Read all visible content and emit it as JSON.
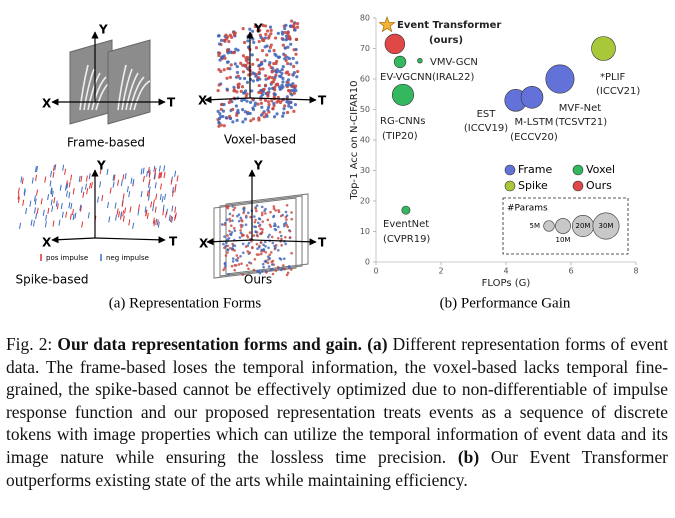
{
  "panels": {
    "forms": {
      "frame": {
        "caption": "Frame-based",
        "axes": [
          "X",
          "Y",
          "T"
        ]
      },
      "voxel": {
        "caption": "Voxel-based",
        "axes": [
          "X",
          "Y",
          "T"
        ]
      },
      "spike": {
        "caption": "Spike-based",
        "axes": [
          "X",
          "Y",
          "T"
        ],
        "legend": [
          "pos impulse",
          "neg impulse"
        ]
      },
      "ours": {
        "caption": "Ours",
        "axes": [
          "X",
          "Y",
          "T"
        ]
      }
    },
    "captions": [
      "(a) Representation Forms",
      "(b) Performance Gain"
    ]
  },
  "chart_data": {
    "type": "bubble",
    "xlabel": "FLOPs (G)",
    "ylabel": "Top-1 Acc on N-CIFAR10",
    "xlim": [
      0,
      8
    ],
    "xticks": [
      0,
      2,
      4,
      6,
      8
    ],
    "ylim": [
      0,
      80
    ],
    "yticks": [
      0,
      10,
      20,
      30,
      40,
      50,
      60,
      70,
      80
    ],
    "series": [
      {
        "name": "Frame",
        "color": "#6272d8",
        "x": [
          4.3,
          4.8,
          5.66
        ],
        "values": [
          53,
          54,
          60
        ],
        "sizes": [
          21,
          21,
          35
        ],
        "labels": [
          [
            "EST",
            "(ICCV19)"
          ],
          [
            "M-LSTM",
            "(ECCV20)"
          ],
          [
            "MVF-Net",
            "(TCSVT21)"
          ]
        ]
      },
      {
        "name": "Voxel",
        "color": "#34b85f",
        "x": [
          0.74,
          1.35,
          0.83,
          0.92
        ],
        "values": [
          65.6,
          66,
          54.8,
          17
        ],
        "sizes": [
          6,
          1,
          20,
          3
        ],
        "labels": [
          [
            "EV-VGCNN",
            "(IRAL22)"
          ],
          [
            "VMV-GCN"
          ],
          [
            "RG-CNNs",
            "(TIP20)"
          ],
          [
            "EventNet",
            "(CVPR19)"
          ]
        ]
      },
      {
        "name": "Spike",
        "color": "#a8c83a",
        "x": [
          7.0
        ],
        "values": [
          70
        ],
        "sizes": [
          25
        ],
        "labels": [
          [
            "*PLIF",
            "(ICCV21)"
          ]
        ]
      },
      {
        "name": "Ours",
        "color": "#e04848",
        "x": [
          0.58
        ],
        "values": [
          71.5
        ],
        "sizes": [
          17
        ],
        "labels": [
          []
        ]
      }
    ],
    "star": {
      "x": 0.34,
      "y": 77.7,
      "label": [
        "Event Transformer",
        "(ours)"
      ],
      "color": "#f5b335"
    },
    "size_legend": {
      "title": "#Params",
      "sizes": [
        5,
        10,
        20,
        30
      ],
      "labels": [
        "5M",
        "10M",
        "20M",
        "30M"
      ]
    }
  },
  "figure_caption": {
    "label": "Fig. 2:",
    "title": "Our data representation forms and gain.",
    "a_tag": "(a)",
    "a_text": "Different representation forms of event data. The frame-based loses the temporal information, the voxel-based lacks temporal fine-grained, the spike-based cannot be effectively optimized due to non-differentiable of impulse response function and our proposed representation treats events as a sequence of discrete tokens with image properties which can utilize the temporal information of event data and its image nature while ensuring the lossless time precision.",
    "b_tag": "(b)",
    "b_text": "Our Event Transformer outperforms existing state of the arts while maintaining efficiency."
  }
}
